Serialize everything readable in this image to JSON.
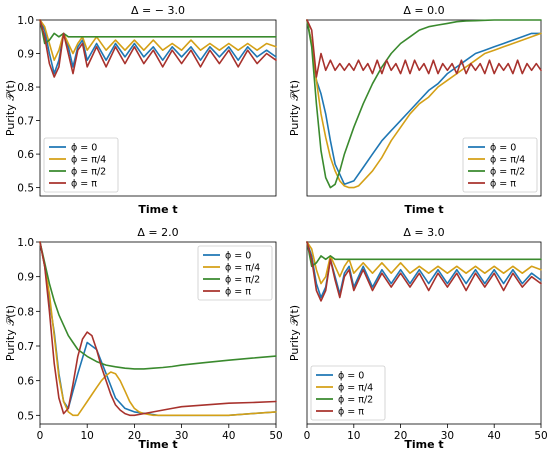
{
  "chart_data": [
    {
      "type": "line",
      "title": "Δ = − 3.0",
      "xlabel": "Time t",
      "ylabel": "Purity 𝒫(t)",
      "xlim": [
        0,
        50
      ],
      "ylim": [
        0.475,
        1.0
      ],
      "x_ticks": [],
      "y_ticks": [
        "1.0",
        "0.9",
        "0.8",
        "0.7",
        "0.6",
        "0.5"
      ],
      "y_tick_values": [
        1.0,
        0.9,
        0.8,
        0.7,
        0.6,
        0.5
      ],
      "legend": "lower-left",
      "series": [
        {
          "name": "ϕ = 0",
          "color": "#1f77b4",
          "x": [
            0,
            1,
            2,
            3,
            4,
            5,
            6,
            7,
            8,
            9,
            10,
            12,
            14,
            16,
            18,
            20,
            22,
            24,
            26,
            28,
            30,
            32,
            34,
            36,
            38,
            40,
            42,
            44,
            46,
            48,
            50
          ],
          "values": [
            1.0,
            0.97,
            0.9,
            0.84,
            0.88,
            0.96,
            0.92,
            0.86,
            0.92,
            0.94,
            0.88,
            0.93,
            0.88,
            0.93,
            0.89,
            0.93,
            0.89,
            0.92,
            0.88,
            0.92,
            0.89,
            0.92,
            0.88,
            0.92,
            0.89,
            0.92,
            0.88,
            0.92,
            0.89,
            0.91,
            0.89
          ]
        },
        {
          "name": "ϕ = π/4",
          "color": "#d4a017",
          "x": [
            0,
            1,
            2,
            3,
            4,
            5,
            6,
            7,
            8,
            9,
            10,
            12,
            14,
            16,
            18,
            20,
            22,
            24,
            26,
            28,
            30,
            32,
            34,
            36,
            38,
            40,
            42,
            44,
            46,
            48,
            50
          ],
          "values": [
            1.0,
            0.98,
            0.93,
            0.88,
            0.91,
            0.96,
            0.93,
            0.9,
            0.93,
            0.95,
            0.91,
            0.95,
            0.91,
            0.94,
            0.91,
            0.94,
            0.91,
            0.94,
            0.91,
            0.93,
            0.91,
            0.94,
            0.91,
            0.93,
            0.91,
            0.93,
            0.91,
            0.93,
            0.91,
            0.93,
            0.92
          ]
        },
        {
          "name": "ϕ = π/2",
          "color": "#3a8a2e",
          "x": [
            0,
            1,
            2,
            3,
            4,
            5,
            6,
            7,
            8,
            10,
            14,
            20,
            30,
            40,
            50
          ],
          "values": [
            1.0,
            0.93,
            0.94,
            0.96,
            0.95,
            0.96,
            0.95,
            0.95,
            0.95,
            0.95,
            0.95,
            0.95,
            0.95,
            0.95,
            0.95
          ]
        },
        {
          "name": "ϕ = π",
          "color": "#a8322d",
          "x": [
            0,
            1,
            2,
            3,
            4,
            5,
            6,
            7,
            8,
            9,
            10,
            12,
            14,
            16,
            18,
            20,
            22,
            24,
            26,
            28,
            30,
            32,
            34,
            36,
            38,
            40,
            42,
            44,
            46,
            48,
            50
          ],
          "values": [
            1.0,
            0.95,
            0.87,
            0.83,
            0.86,
            0.96,
            0.9,
            0.84,
            0.91,
            0.93,
            0.86,
            0.92,
            0.86,
            0.92,
            0.87,
            0.92,
            0.87,
            0.91,
            0.86,
            0.91,
            0.87,
            0.91,
            0.86,
            0.91,
            0.87,
            0.91,
            0.86,
            0.91,
            0.87,
            0.9,
            0.88
          ]
        }
      ]
    },
    {
      "type": "line",
      "title": "Δ = 0.0",
      "xlabel": "Time t",
      "ylabel": "Purity 𝒫(t)",
      "xlim": [
        0,
        50
      ],
      "ylim": [
        0.475,
        1.0
      ],
      "x_ticks": [],
      "y_ticks": [],
      "legend": "lower-right",
      "series": [
        {
          "name": "ϕ = 0",
          "color": "#1f77b4",
          "x": [
            0,
            1,
            2,
            3,
            4,
            5,
            6,
            8,
            10,
            12,
            14,
            16,
            18,
            20,
            22,
            24,
            26,
            28,
            30,
            32,
            34,
            36,
            38,
            40,
            42,
            44,
            46,
            48,
            50
          ],
          "values": [
            1.0,
            0.93,
            0.82,
            0.78,
            0.72,
            0.64,
            0.57,
            0.51,
            0.52,
            0.56,
            0.6,
            0.64,
            0.67,
            0.7,
            0.73,
            0.76,
            0.79,
            0.81,
            0.84,
            0.86,
            0.88,
            0.9,
            0.91,
            0.92,
            0.93,
            0.94,
            0.95,
            0.96,
            0.96
          ]
        },
        {
          "name": "ϕ = π/4",
          "color": "#d4a017",
          "x": [
            0,
            1,
            2,
            3,
            4,
            5,
            6,
            7,
            8,
            9,
            10,
            11,
            12,
            14,
            16,
            18,
            20,
            22,
            24,
            26,
            28,
            30,
            32,
            34,
            36,
            38,
            40,
            42,
            44,
            46,
            48,
            50
          ],
          "values": [
            1.0,
            0.93,
            0.82,
            0.72,
            0.65,
            0.59,
            0.55,
            0.52,
            0.505,
            0.5,
            0.5,
            0.505,
            0.52,
            0.55,
            0.59,
            0.64,
            0.68,
            0.72,
            0.75,
            0.77,
            0.8,
            0.82,
            0.84,
            0.86,
            0.88,
            0.9,
            0.91,
            0.92,
            0.93,
            0.94,
            0.95,
            0.96
          ]
        },
        {
          "name": "ϕ = π/2",
          "color": "#3a8a2e",
          "x": [
            0,
            1,
            2,
            3,
            4,
            5,
            6,
            7,
            8,
            10,
            12,
            14,
            16,
            18,
            20,
            22,
            24,
            26,
            28,
            30,
            32,
            34,
            36,
            38,
            40,
            42,
            44,
            46,
            48,
            50
          ],
          "values": [
            1.0,
            0.92,
            0.75,
            0.61,
            0.53,
            0.5,
            0.51,
            0.55,
            0.6,
            0.68,
            0.75,
            0.81,
            0.86,
            0.9,
            0.93,
            0.95,
            0.97,
            0.98,
            0.985,
            0.99,
            0.995,
            0.997,
            0.998,
            0.999,
            1.0,
            1.0,
            1.0,
            1.0,
            1.0,
            1.0
          ]
        },
        {
          "name": "ϕ = π",
          "color": "#a8322d",
          "x": [
            0,
            1,
            2,
            3,
            4,
            5,
            6,
            7,
            8,
            9,
            10,
            11,
            12,
            13,
            14,
            15,
            16,
            17,
            18,
            19,
            20,
            21,
            22,
            23,
            24,
            25,
            26,
            27,
            28,
            29,
            30,
            31,
            32,
            33,
            34,
            35,
            36,
            37,
            38,
            39,
            40,
            41,
            42,
            43,
            44,
            45,
            46,
            47,
            48,
            49,
            50
          ],
          "values": [
            1.0,
            0.97,
            0.83,
            0.9,
            0.85,
            0.88,
            0.85,
            0.87,
            0.85,
            0.87,
            0.85,
            0.88,
            0.85,
            0.87,
            0.84,
            0.88,
            0.84,
            0.88,
            0.85,
            0.87,
            0.84,
            0.88,
            0.84,
            0.88,
            0.85,
            0.87,
            0.84,
            0.88,
            0.84,
            0.87,
            0.85,
            0.87,
            0.84,
            0.88,
            0.84,
            0.87,
            0.85,
            0.87,
            0.84,
            0.88,
            0.84,
            0.87,
            0.85,
            0.87,
            0.84,
            0.88,
            0.84,
            0.87,
            0.85,
            0.87,
            0.85
          ]
        }
      ]
    },
    {
      "type": "line",
      "title": "Δ = 2.0",
      "xlabel": "Time t",
      "ylabel": "Purity 𝒫(t)",
      "xlim": [
        0,
        50
      ],
      "ylim": [
        0.475,
        1.0
      ],
      "x_ticks": [
        "0",
        "10",
        "20",
        "30",
        "40",
        "50"
      ],
      "x_tick_values": [
        0,
        10,
        20,
        30,
        40,
        50
      ],
      "y_ticks": [
        "1.0",
        "0.9",
        "0.8",
        "0.7",
        "0.6",
        "0.5"
      ],
      "y_tick_values": [
        1.0,
        0.9,
        0.8,
        0.7,
        0.6,
        0.5
      ],
      "legend": "upper-right",
      "series": [
        {
          "name": "ϕ = 0",
          "color": "#1f77b4",
          "x": [
            0,
            1,
            2,
            3,
            4,
            5,
            6,
            7,
            8,
            10,
            12,
            14,
            16,
            18,
            20,
            25,
            30,
            35,
            40,
            45,
            50
          ],
          "values": [
            1.0,
            0.93,
            0.83,
            0.74,
            0.62,
            0.54,
            0.52,
            0.57,
            0.62,
            0.71,
            0.69,
            0.62,
            0.55,
            0.52,
            0.51,
            0.5,
            0.5,
            0.5,
            0.5,
            0.505,
            0.51
          ]
        },
        {
          "name": "ϕ = π/4",
          "color": "#d4a017",
          "x": [
            0,
            1,
            2,
            3,
            4,
            5,
            6,
            7,
            8,
            9,
            10,
            11,
            12,
            13,
            14,
            15,
            16,
            17,
            18,
            19,
            20,
            21,
            22,
            24,
            26,
            28,
            30,
            35,
            40,
            45,
            50
          ],
          "values": [
            1.0,
            0.93,
            0.85,
            0.73,
            0.61,
            0.54,
            0.51,
            0.5,
            0.5,
            0.52,
            0.54,
            0.56,
            0.58,
            0.6,
            0.615,
            0.625,
            0.62,
            0.6,
            0.57,
            0.54,
            0.52,
            0.51,
            0.505,
            0.5,
            0.5,
            0.5,
            0.5,
            0.5,
            0.5,
            0.505,
            0.51
          ]
        },
        {
          "name": "ϕ = π/2",
          "color": "#3a8a2e",
          "x": [
            0,
            1,
            2,
            3,
            4,
            5,
            6,
            7,
            8,
            10,
            12,
            14,
            16,
            18,
            20,
            22,
            24,
            26,
            28,
            30,
            35,
            40,
            45,
            50
          ],
          "values": [
            1.0,
            0.94,
            0.88,
            0.83,
            0.79,
            0.76,
            0.73,
            0.71,
            0.69,
            0.67,
            0.655,
            0.645,
            0.64,
            0.636,
            0.634,
            0.634,
            0.636,
            0.638,
            0.641,
            0.645,
            0.652,
            0.659,
            0.665,
            0.671
          ]
        },
        {
          "name": "ϕ = π",
          "color": "#a8322d",
          "x": [
            0,
            1,
            2,
            3,
            4,
            5,
            6,
            7,
            8,
            9,
            10,
            11,
            12,
            13,
            14,
            15,
            16,
            17,
            18,
            19,
            20,
            22,
            24,
            26,
            28,
            30,
            35,
            40,
            45,
            50
          ],
          "values": [
            1.0,
            0.93,
            0.8,
            0.65,
            0.55,
            0.505,
            0.52,
            0.59,
            0.67,
            0.72,
            0.74,
            0.73,
            0.69,
            0.64,
            0.6,
            0.56,
            0.53,
            0.515,
            0.505,
            0.5,
            0.5,
            0.505,
            0.51,
            0.515,
            0.52,
            0.525,
            0.53,
            0.535,
            0.537,
            0.54
          ]
        }
      ]
    },
    {
      "type": "line",
      "title": "Δ = 3.0",
      "xlabel": "Time t",
      "ylabel": "Purity 𝒫(t)",
      "xlim": [
        0,
        50
      ],
      "ylim": [
        0.475,
        1.0
      ],
      "x_ticks": [
        "0",
        "10",
        "20",
        "30",
        "40",
        "50"
      ],
      "x_tick_values": [
        0,
        10,
        20,
        30,
        40,
        50
      ],
      "y_ticks": [],
      "legend": "lower-left",
      "series": [
        {
          "name": "ϕ = 0",
          "color": "#1f77b4",
          "x": [
            0,
            1,
            2,
            3,
            4,
            5,
            6,
            7,
            8,
            9,
            10,
            12,
            14,
            16,
            18,
            20,
            22,
            24,
            26,
            28,
            30,
            32,
            34,
            36,
            38,
            40,
            42,
            44,
            46,
            48,
            50
          ],
          "values": [
            1.0,
            0.96,
            0.88,
            0.84,
            0.87,
            0.95,
            0.9,
            0.85,
            0.91,
            0.93,
            0.87,
            0.93,
            0.87,
            0.92,
            0.88,
            0.92,
            0.88,
            0.92,
            0.88,
            0.92,
            0.88,
            0.92,
            0.88,
            0.92,
            0.88,
            0.92,
            0.88,
            0.92,
            0.88,
            0.91,
            0.89
          ]
        },
        {
          "name": "ϕ = π/4",
          "color": "#d4a017",
          "x": [
            0,
            1,
            2,
            3,
            4,
            5,
            6,
            7,
            8,
            9,
            10,
            12,
            14,
            16,
            18,
            20,
            22,
            24,
            26,
            28,
            30,
            32,
            34,
            36,
            38,
            40,
            42,
            44,
            46,
            48,
            50
          ],
          "values": [
            1.0,
            0.98,
            0.92,
            0.88,
            0.9,
            0.96,
            0.93,
            0.9,
            0.93,
            0.95,
            0.91,
            0.94,
            0.91,
            0.94,
            0.91,
            0.94,
            0.91,
            0.93,
            0.91,
            0.93,
            0.91,
            0.93,
            0.91,
            0.93,
            0.91,
            0.93,
            0.91,
            0.93,
            0.91,
            0.93,
            0.92
          ]
        },
        {
          "name": "ϕ = π/2",
          "color": "#3a8a2e",
          "x": [
            0,
            1,
            2,
            3,
            4,
            5,
            6,
            7,
            8,
            10,
            14,
            20,
            30,
            40,
            50
          ],
          "values": [
            1.0,
            0.93,
            0.94,
            0.96,
            0.95,
            0.96,
            0.95,
            0.95,
            0.95,
            0.95,
            0.95,
            0.95,
            0.95,
            0.95,
            0.95
          ]
        },
        {
          "name": "ϕ = π",
          "color": "#a8322d",
          "x": [
            0,
            1,
            2,
            3,
            4,
            5,
            6,
            7,
            8,
            9,
            10,
            12,
            14,
            16,
            18,
            20,
            22,
            24,
            26,
            28,
            30,
            32,
            34,
            36,
            38,
            40,
            42,
            44,
            46,
            48,
            50
          ],
          "values": [
            1.0,
            0.95,
            0.86,
            0.83,
            0.86,
            0.95,
            0.89,
            0.84,
            0.9,
            0.92,
            0.86,
            0.92,
            0.86,
            0.91,
            0.87,
            0.91,
            0.87,
            0.91,
            0.86,
            0.91,
            0.87,
            0.91,
            0.86,
            0.91,
            0.87,
            0.91,
            0.86,
            0.91,
            0.87,
            0.9,
            0.88
          ]
        }
      ]
    }
  ]
}
